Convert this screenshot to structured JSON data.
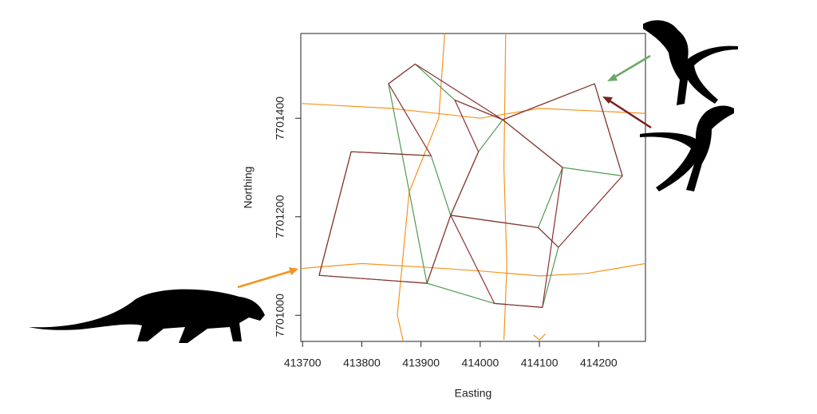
{
  "chart_data": {
    "type": "line",
    "x_label": "Easting",
    "y_label": "Northing",
    "xlim": [
      413697,
      414279
    ],
    "ylim": [
      7700947,
      7701572
    ],
    "xticks": [
      413700,
      413800,
      413900,
      414000,
      414100,
      414200
    ],
    "yticks": [
      7701000,
      7701200,
      7701400
    ],
    "series": [
      {
        "color": "#f7931e",
        "x": [
          413697,
          413800,
          413900,
          414000,
          414100,
          414180,
          414279,
          null,
          414043,
          414040,
          414045,
          414040,
          null,
          413940,
          413930,
          413880,
          413860,
          413870,
          null,
          413697,
          413850,
          414000,
          414100,
          414279,
          null,
          414090,
          414100,
          414110
        ],
        "values": [
          7701095,
          7701105,
          7701098,
          7701090,
          7701080,
          7701085,
          7701105,
          null,
          7701572,
          7701300,
          7701100,
          7700950,
          null,
          7701572,
          7701400,
          7701250,
          7701000,
          7700947,
          null,
          7701430,
          7701420,
          7701400,
          7701420,
          7701410,
          null,
          7700960,
          7700950,
          7700962
        ]
      },
      {
        "color": "#4f9a4f",
        "x": [
          413845,
          413890,
          413957,
          414038,
          414193,
          414240,
          414139,
          414098,
          414132,
          414105,
          414024,
          413910,
          413728,
          413782,
          413917,
          413950,
          413997,
          414038,
          414139,
          414098,
          413950,
          413910,
          413845
        ],
        "values": [
          7701470,
          7701510,
          7701437,
          7701397,
          7701470,
          7701283,
          7701300,
          7701178,
          7701138,
          7701016,
          7701024,
          7701065,
          7701081,
          7701332,
          7701324,
          7701203,
          7701332,
          7701397,
          7701300,
          7701178,
          7701203,
          7701065,
          7701470
        ]
      },
      {
        "color": "#8b2f2f",
        "x": [
          413890,
          413845,
          413917,
          413782,
          413728,
          413910,
          413950,
          414098,
          414132,
          414240,
          414193,
          414038,
          413957,
          413997,
          413950,
          414024,
          414105,
          414139,
          414038,
          413890
        ],
        "values": [
          7701510,
          7701470,
          7701324,
          7701332,
          7701081,
          7701065,
          7701203,
          7701178,
          7701138,
          7701283,
          7701470,
          7701397,
          7701437,
          7701332,
          7701203,
          7701024,
          7701016,
          7701300,
          7701397,
          7701510
        ]
      }
    ]
  }
}
